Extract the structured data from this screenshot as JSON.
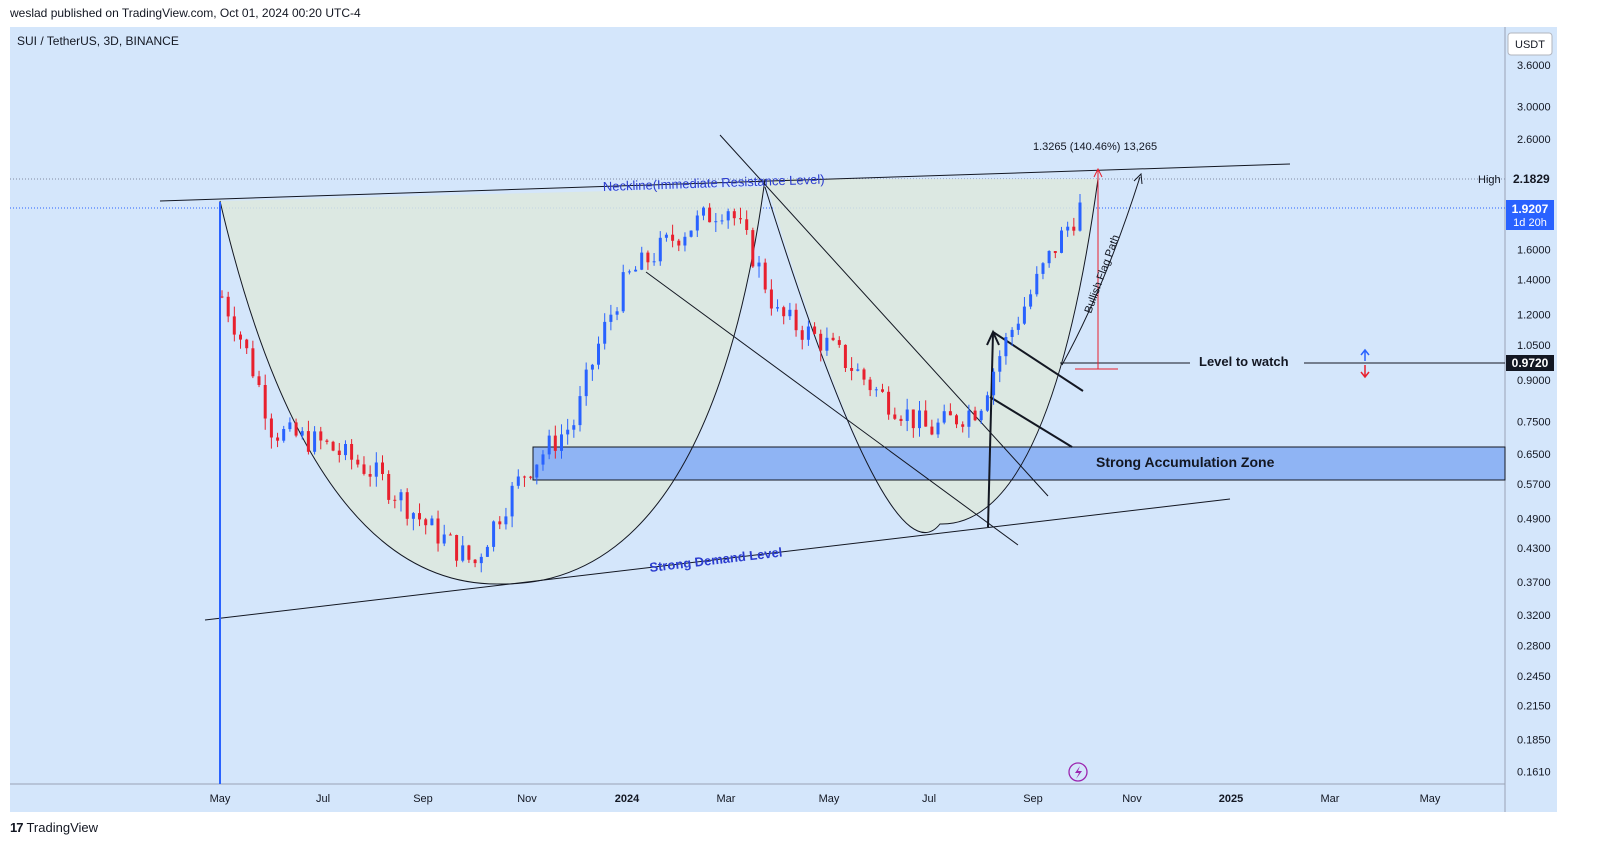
{
  "header": {
    "publisher_line": "weslad published on TradingView.com, Oct 01, 2024 00:20 UTC-4"
  },
  "symbol_line": "SUI / TetherUS, 3D, BINANCE",
  "footer": {
    "logo_mark": "17",
    "brand": "TradingView"
  },
  "colors": {
    "background": "#d4e6fb",
    "up": "#2962ff",
    "down": "#e8202e",
    "zone": "#8fb4f4",
    "annotation_blue": "#2b3ccf",
    "line": "#131722"
  },
  "chart_data": {
    "type": "candlestick",
    "symbol": "SUI / TetherUS",
    "timeframe": "3D",
    "exchange": "BINANCE",
    "y_scale": "log",
    "ylim": [
      0.15,
      4.0
    ],
    "y_axis_unit": "USDT",
    "y_ticks": [
      "3.6000",
      "3.0000",
      "2.6000",
      "1.6000",
      "1.4000",
      "1.2000",
      "1.0500",
      "0.9000",
      "0.7500",
      "0.6500",
      "0.5700",
      "0.4900",
      "0.4300",
      "0.3700",
      "0.3200",
      "0.2800",
      "0.2450",
      "0.2150",
      "0.1850",
      "0.1610"
    ],
    "x_ticks": [
      "May",
      "Jul",
      "Sep",
      "Nov",
      "2024",
      "Mar",
      "May",
      "Jul",
      "Sep",
      "Nov",
      "2025",
      "Mar",
      "May"
    ],
    "price_labels": {
      "high": {
        "label": "High",
        "value": "2.1829"
      },
      "last": {
        "value": "1.9207",
        "countdown": "1d 20h"
      },
      "level": {
        "value": "0.9720"
      }
    },
    "annotations": {
      "neckline": "Neckline(Immediate Resistance Level)",
      "demand": "Strong Demand Level",
      "zone": "Strong Accumulation Zone",
      "level": "Level to watch",
      "flag_path": "Bullish Flag Path",
      "measure": "1.3265 (140.46%) 13,265"
    },
    "accumulation_zone": [
      0.58,
      0.665
    ],
    "level_to_watch": 0.972,
    "high_value": 2.1829,
    "last_value": 1.9207,
    "series_summary": [
      {
        "date": "2023-05",
        "close": 1.3
      },
      {
        "date": "2023-06",
        "close": 0.72
      },
      {
        "date": "2023-07",
        "close": 0.68
      },
      {
        "date": "2023-08",
        "close": 0.6
      },
      {
        "date": "2023-09",
        "close": 0.48
      },
      {
        "date": "2023-10",
        "close": 0.4
      },
      {
        "date": "2023-11",
        "close": 0.6
      },
      {
        "date": "2023-12",
        "close": 0.75
      },
      {
        "date": "2024-01",
        "close": 1.4
      },
      {
        "date": "2024-02",
        "close": 1.7
      },
      {
        "date": "2024-03",
        "close": 1.95
      },
      {
        "date": "2024-04",
        "close": 1.2
      },
      {
        "date": "2024-05",
        "close": 1.05
      },
      {
        "date": "2024-06",
        "close": 0.85
      },
      {
        "date": "2024-07",
        "close": 0.72
      },
      {
        "date": "2024-08",
        "close": 0.8
      },
      {
        "date": "2024-09",
        "close": 1.3
      },
      {
        "date": "2024-10",
        "close": 1.92
      }
    ]
  }
}
